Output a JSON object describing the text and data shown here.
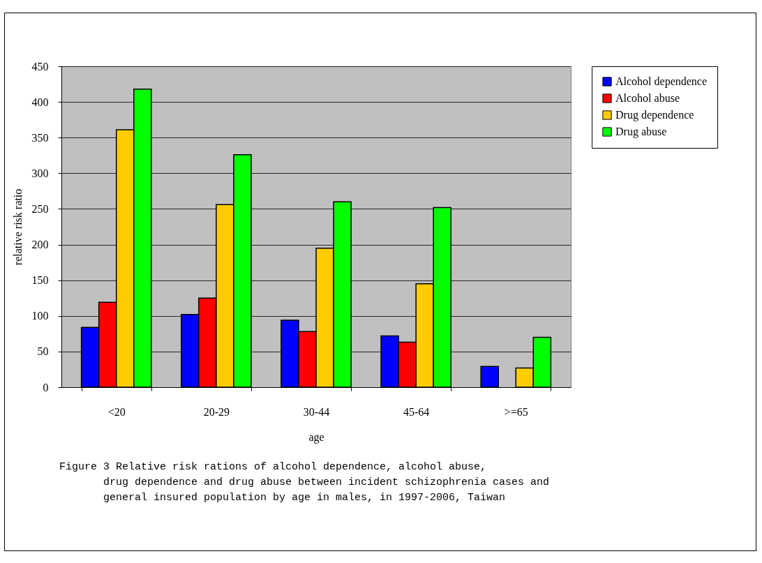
{
  "chart_data": {
    "type": "bar",
    "xlabel": "age",
    "ylabel": "relative risk ratio",
    "categories": [
      "<20",
      "20-29",
      "30-44",
      "45-64",
      ">=65"
    ],
    "series": [
      {
        "name": "Alcohol dependence",
        "color": "#0000ff",
        "values": [
          84,
          102,
          94,
          72,
          29
        ]
      },
      {
        "name": "Alcohol abuse",
        "color": "#ff0000",
        "values": [
          119,
          125,
          78,
          63,
          null
        ]
      },
      {
        "name": "Drug dependence",
        "color": "#ffcc00",
        "values": [
          361,
          256,
          195,
          145,
          27
        ]
      },
      {
        "name": "Drug abuse",
        "color": "#00ff00",
        "values": [
          418,
          326,
          260,
          252,
          70
        ]
      }
    ],
    "ylim": [
      0,
      450
    ],
    "yticks": [
      0,
      50,
      100,
      150,
      200,
      250,
      300,
      350,
      400,
      450
    ],
    "grid": "y",
    "legend": "right",
    "annotations": [
      "Figure 3 Relative risk rations of alcohol dependence, alcohol abuse,\n       drug dependence and drug abuse between incident schizophrenia cases and\n       general insured population by age in males, in 1997-2006, Taiwan"
    ]
  }
}
